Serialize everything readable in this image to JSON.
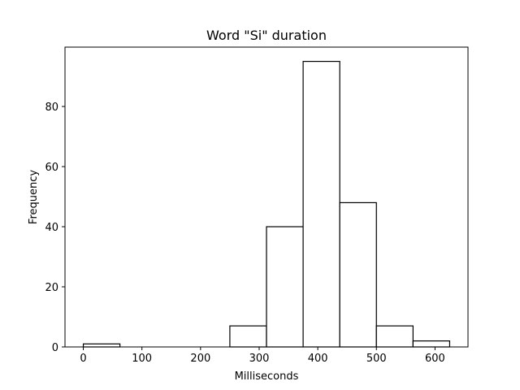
{
  "chart_data": {
    "type": "bar",
    "title": "Word \"Si\" duration",
    "xlabel": "Milliseconds",
    "ylabel": "Frequency",
    "bins": [
      {
        "start": 0,
        "end": 62.5,
        "count": 1
      },
      {
        "start": 62.5,
        "end": 125,
        "count": 0
      },
      {
        "start": 125,
        "end": 187.5,
        "count": 0
      },
      {
        "start": 187.5,
        "end": 250,
        "count": 0
      },
      {
        "start": 250,
        "end": 312.5,
        "count": 7
      },
      {
        "start": 312.5,
        "end": 375,
        "count": 40
      },
      {
        "start": 375,
        "end": 437.5,
        "count": 95
      },
      {
        "start": 437.5,
        "end": 500,
        "count": 48
      },
      {
        "start": 500,
        "end": 562.5,
        "count": 7
      },
      {
        "start": 562.5,
        "end": 625,
        "count": 2
      }
    ],
    "xlim": [
      -31.25,
      656.25
    ],
    "ylim": [
      0,
      99.75
    ],
    "xticks": [
      0,
      100,
      200,
      300,
      400,
      500,
      600
    ],
    "yticks": [
      0,
      20,
      40,
      60,
      80
    ],
    "grid": false,
    "bar_fill": "#ffffff",
    "bar_edge": "#000000"
  }
}
